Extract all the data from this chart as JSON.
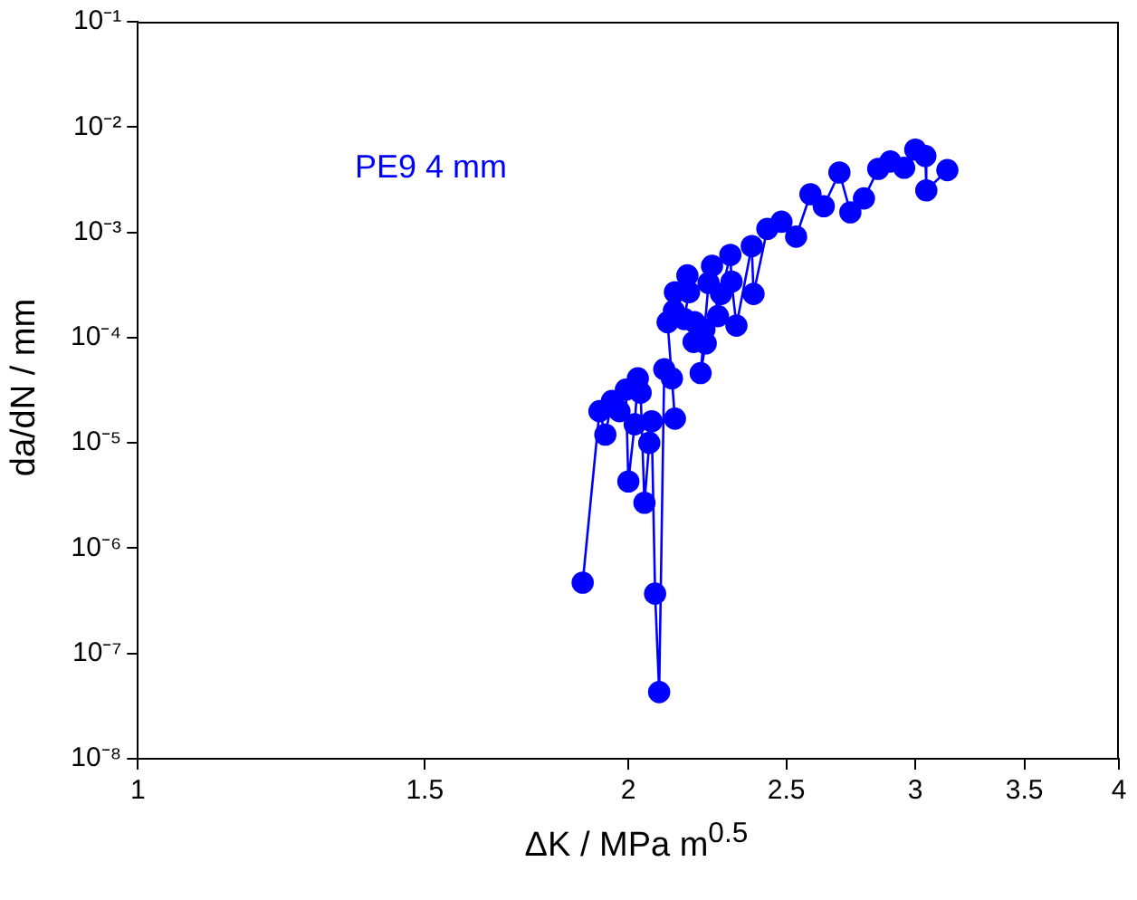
{
  "chart_data": {
    "type": "line",
    "xlabel": "ΔK / MPa m$^{0.5}$",
    "ylabel": "da/dN / mm",
    "annotations": [
      "PE9  4 mm"
    ],
    "log": "xy",
    "grid": false,
    "legend": false,
    "marker": "circle",
    "line_style": "solid",
    "xlim": [
      1,
      4
    ],
    "xticks": [
      1,
      1.5,
      2,
      2.5,
      3,
      3.5,
      4
    ],
    "ylim": [
      1e-08,
      0.1
    ],
    "yticks": [
      {
        "value": 1e-08,
        "label": "10⁻⁸"
      },
      {
        "value": 1e-07,
        "label": "10⁻⁷"
      },
      {
        "value": 1e-06,
        "label": "10⁻⁶"
      },
      {
        "value": 1e-05,
        "label": "10⁻⁵"
      },
      {
        "value": 0.0001,
        "label": "10⁻⁴"
      },
      {
        "value": 0.001,
        "label": "10⁻³"
      },
      {
        "value": 0.01,
        "label": "10⁻²"
      },
      {
        "value": 0.1,
        "label": "10⁻¹"
      }
    ],
    "series": [
      {
        "color": "#0000ff",
        "x": [
          1.875,
          1.92,
          1.936,
          1.954,
          1.975,
          1.993,
          2.0,
          2.018,
          2.027,
          2.035,
          2.046,
          2.06,
          2.067,
          2.077,
          2.089,
          2.104,
          2.127,
          2.136,
          2.114,
          2.133,
          2.136,
          2.174,
          2.179,
          2.164,
          2.196,
          2.193,
          2.227,
          2.231,
          2.215,
          2.24,
          2.251,
          2.27,
          2.28,
          2.31,
          2.314,
          2.33,
          2.381,
          2.387,
          2.434,
          2.483,
          2.535,
          2.587,
          2.636,
          2.695,
          2.737,
          2.79,
          2.847,
          2.896,
          2.953,
          3.0,
          3.043,
          3.047,
          3.139
        ],
        "values": [
          4.7e-07,
          2e-05,
          1.2e-05,
          2.5e-05,
          2e-05,
          3.2e-05,
          4.3e-06,
          1.5e-05,
          4.1e-05,
          3e-05,
          2.7e-06,
          1e-05,
          1.6e-05,
          3.7e-07,
          4.3e-08,
          5e-05,
          4.1e-05,
          1.7e-05,
          0.00014,
          0.00018,
          0.00027,
          0.00039,
          0.00027,
          0.00015,
          0.00014,
          9.1e-05,
          0.00012,
          8.8e-05,
          4.6e-05,
          0.00033,
          0.00048,
          0.00016,
          0.00026,
          0.00061,
          0.00034,
          0.00013,
          0.00074,
          0.00026,
          0.00108,
          0.00126,
          0.00091,
          0.0023,
          0.00177,
          0.0037,
          0.00155,
          0.0021,
          0.004,
          0.0047,
          0.0041,
          0.0061,
          0.0053,
          0.0025,
          0.0039
        ]
      }
    ]
  }
}
